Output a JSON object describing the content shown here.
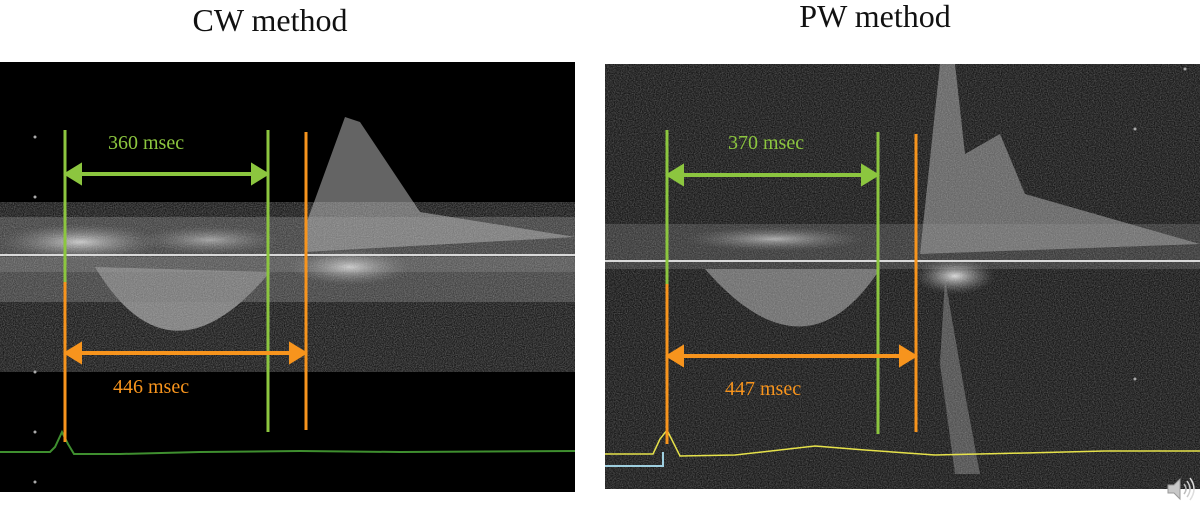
{
  "panels": {
    "cw": {
      "title": "CW method",
      "green_measure": "360 msec",
      "orange_measure": "446 msec",
      "trace_color": "#3f8f2f"
    },
    "pw": {
      "title": "PW method",
      "green_measure": "370 msec",
      "orange_measure": "447 msec",
      "trace_color": "#e6e24a"
    }
  },
  "colors": {
    "green_marker": "#8cc63f",
    "orange_marker": "#f7941d",
    "baseline": "#d9d9d9"
  },
  "icons": {
    "speaker": "speaker-icon"
  }
}
